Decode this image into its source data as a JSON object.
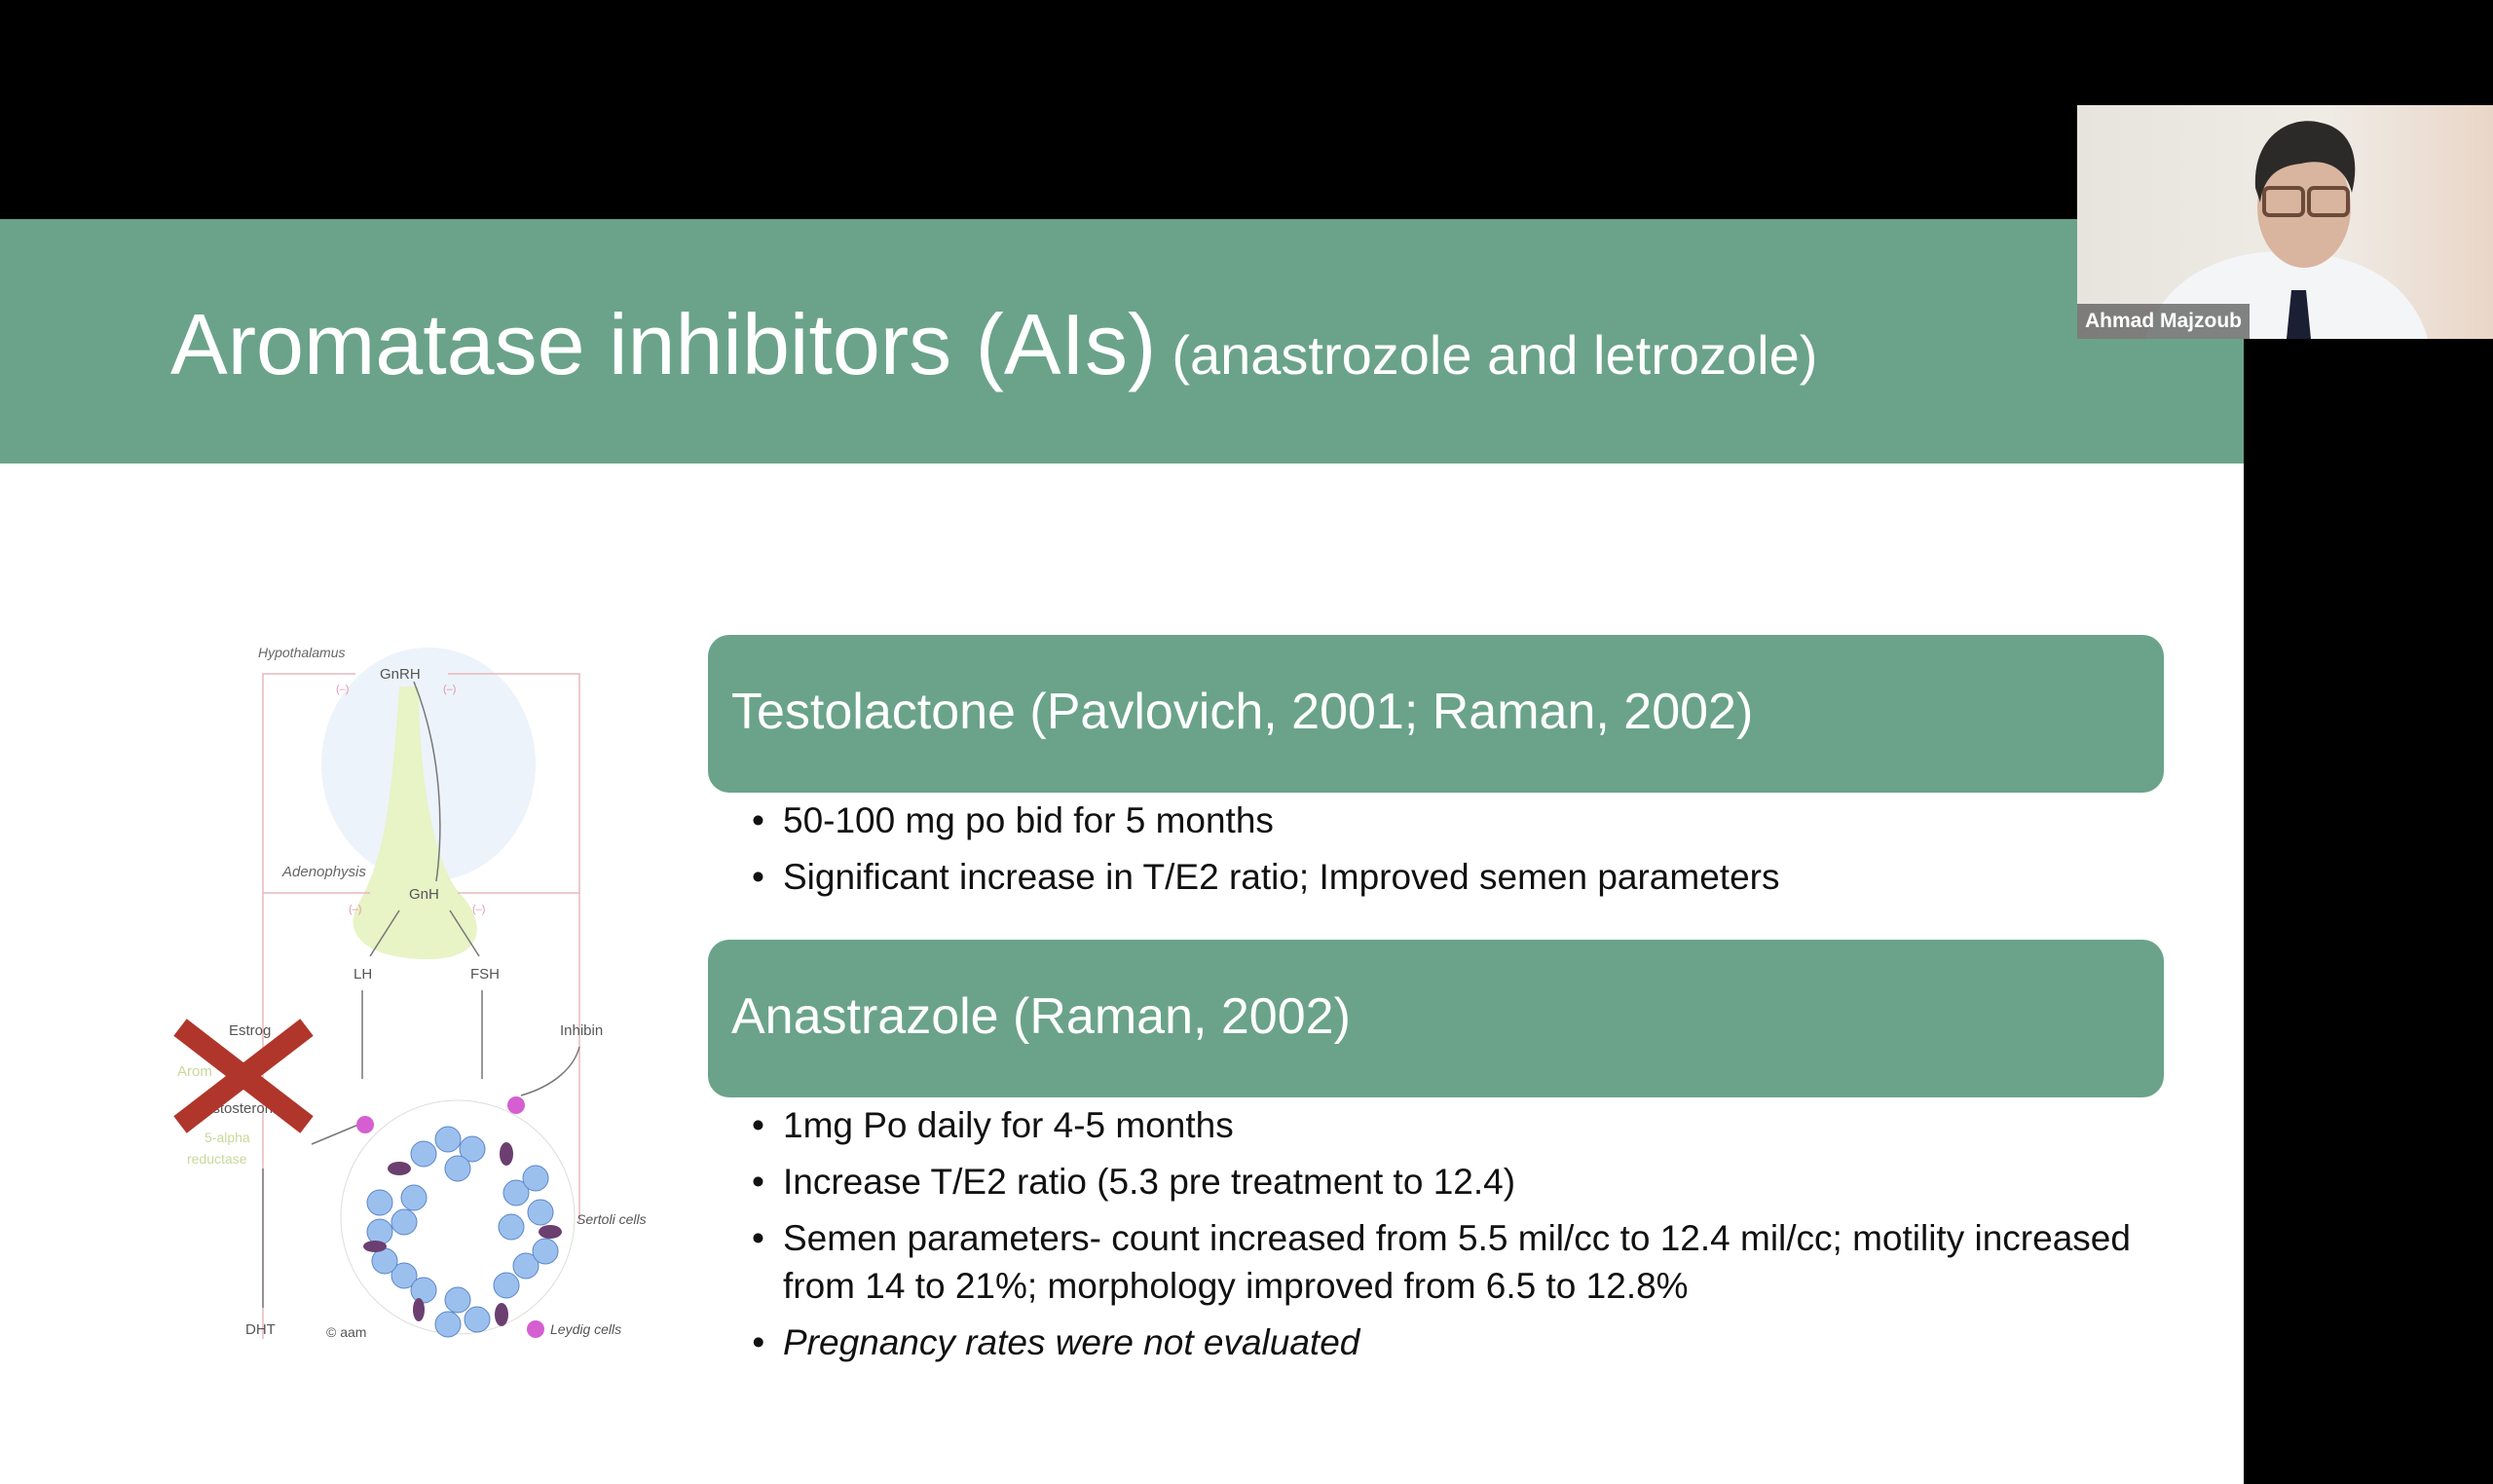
{
  "slide": {
    "title": "Aromatase inhibitors (AIs)",
    "subtitle": "(anastrozole and letrozole)",
    "sections": [
      {
        "heading": "Testolactone (Pavlovich, 2001; Raman, 2002)",
        "bullets": [
          "50-100 mg po bid for 5 months",
          "Significant increase in T/E2 ratio; Improved semen parameters"
        ]
      },
      {
        "heading": "Anastrazole (Raman, 2002)",
        "bullets": [
          "1mg Po daily for 4-5 months",
          "Increase T/E2 ratio (5.3 pre treatment to 12.4)",
          "Semen parameters- count increased from 5.5 mil/cc to 12.4 mil/cc; motility increased from 14 to 21%; morphology improved from 6.5 to 12.8%",
          "Pregnancy rates were not evaluated"
        ]
      }
    ],
    "diagram": {
      "hypothalamus": "Hypothalamus",
      "gnrh": "GnRH",
      "adenophysis": "Adenophysis",
      "gnh": "GnH",
      "lh": "LH",
      "fsh": "FSH",
      "estrogen": "Estrog",
      "inhibin": "Inhibin",
      "aromatase": "Arom",
      "testosterone": "estosterone",
      "alpha": "5-alpha",
      "reductase": "reductase",
      "dht": "DHT",
      "sertoli": "Sertoli cells",
      "leydig": "Leydig cells",
      "copyright": "© aam",
      "neg": "(–)"
    }
  },
  "participant": {
    "name": "Ahmad Majzoub"
  },
  "colors": {
    "accent": "#6aa38a",
    "cross": "#b0362b"
  }
}
